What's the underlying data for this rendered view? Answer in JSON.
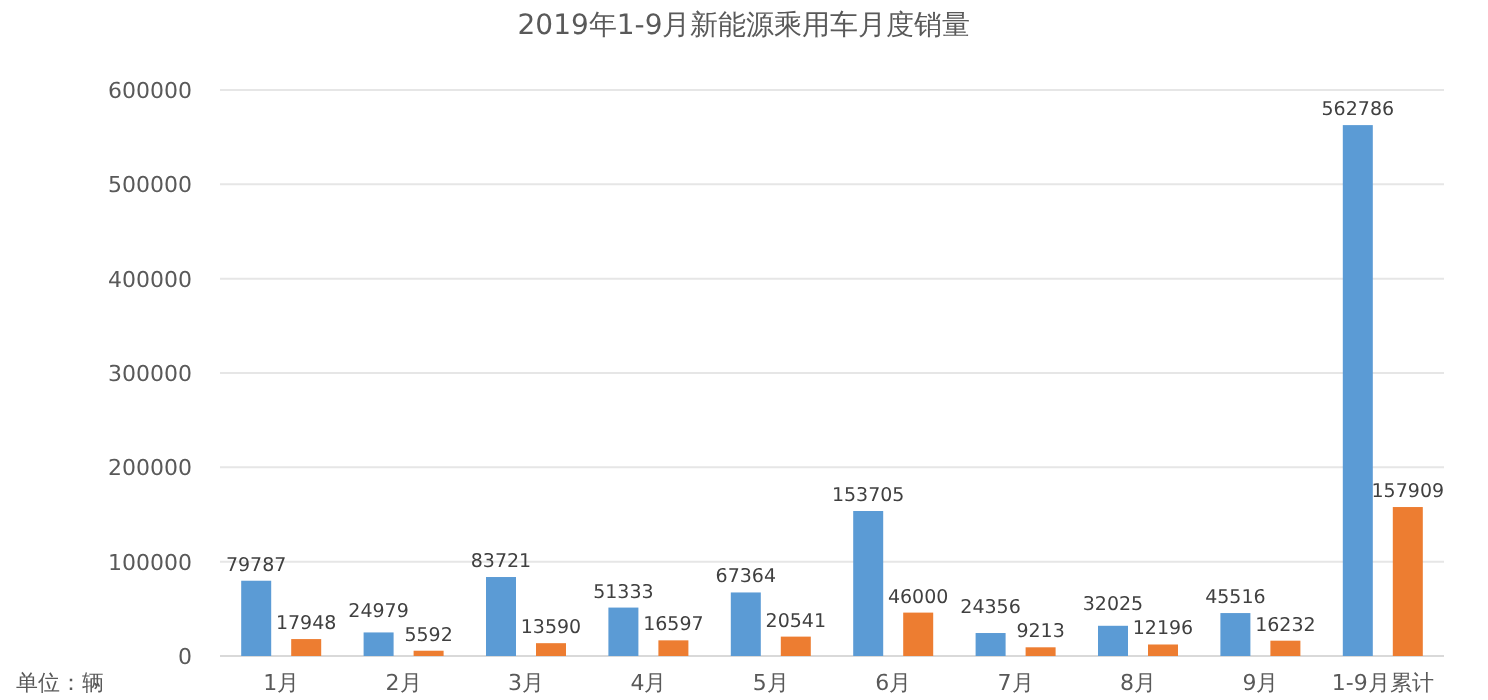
{
  "chart_data": {
    "type": "bar",
    "title": "2019年1-9月新能源乘用车月度销量",
    "categories": [
      "1月",
      "2月",
      "3月",
      "4月",
      "5月",
      "6月",
      "7月",
      "8月",
      "9月",
      "1-9月累计"
    ],
    "series": [
      {
        "color": "#5b9bd5",
        "values": [
          79787,
          24979,
          83721,
          51333,
          67364,
          153705,
          24356,
          32025,
          45516,
          562786
        ]
      },
      {
        "color": "#ed7d31",
        "values": [
          17948,
          5592,
          13590,
          16597,
          20541,
          46000,
          9213,
          12196,
          16232,
          157909
        ]
      }
    ],
    "ylim": [
      0,
      600000
    ],
    "yticks": [
      0,
      100000,
      200000,
      300000,
      400000,
      500000,
      600000
    ],
    "grid": "y",
    "data_labels": true,
    "annotations": [
      "单位：辆"
    ]
  }
}
